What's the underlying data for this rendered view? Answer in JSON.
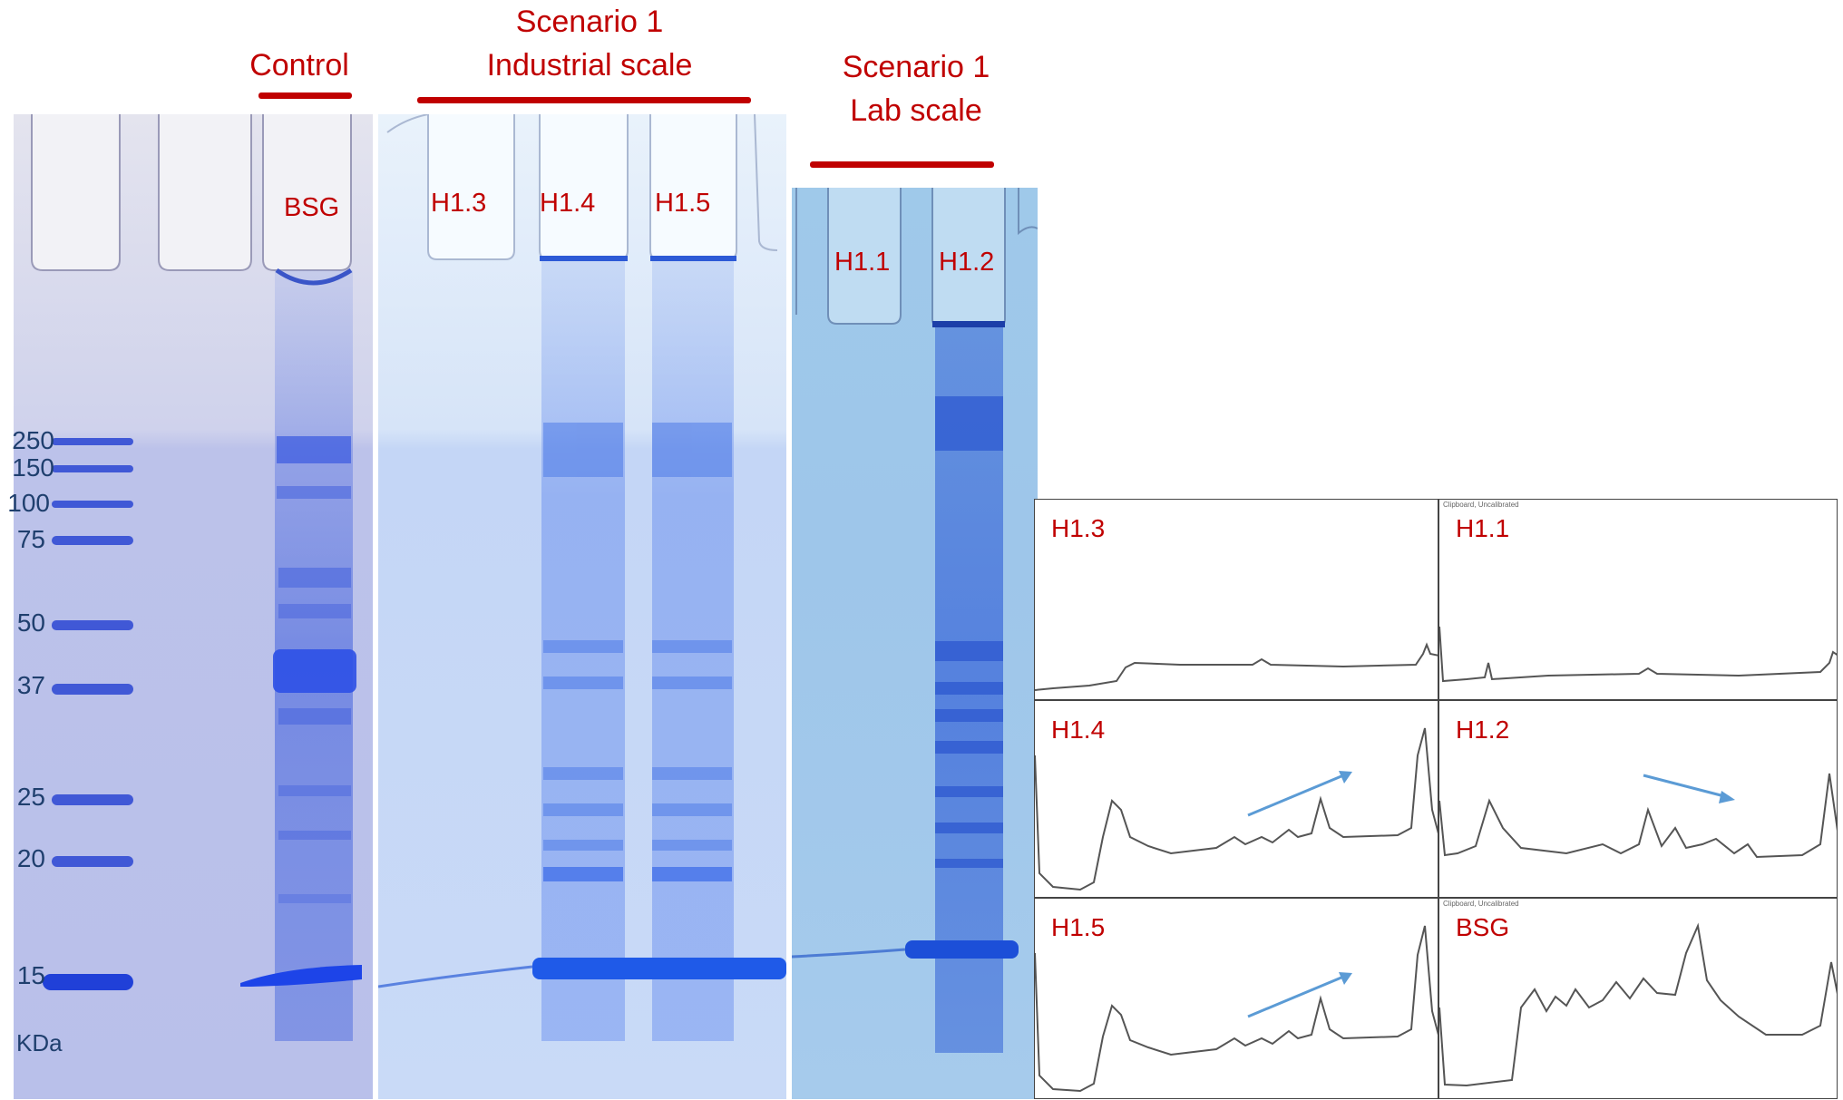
{
  "headers": {
    "control": "Control",
    "scenario_industrial_line1": "Scenario 1",
    "scenario_industrial_line2": "Industrial scale",
    "scenario_lab_line1": "Scenario 1",
    "scenario_lab_line2": "Lab scale"
  },
  "lanes": {
    "bsg": "BSG",
    "h13": "H1.3",
    "h14": "H1.4",
    "h15": "H1.5",
    "h11": "H1.1",
    "h12": "H1.2"
  },
  "ladder": {
    "unit": "KDa",
    "markers": [
      "250",
      "150",
      "100",
      "75",
      "50",
      "37",
      "25",
      "20",
      "15"
    ]
  },
  "profiles": {
    "h13": "H1.3",
    "h11": "H1.1",
    "h14": "H1.4",
    "h12": "H1.2",
    "h15": "H1.5",
    "bsg": "BSG",
    "clipboard_note": "Clipboard, Uncalibrated"
  },
  "colors": {
    "label_red": "#c00000",
    "marker_blue": "#1f3f6e",
    "arrow_blue": "#5b9bd5",
    "trace_gray": "#555555"
  }
}
